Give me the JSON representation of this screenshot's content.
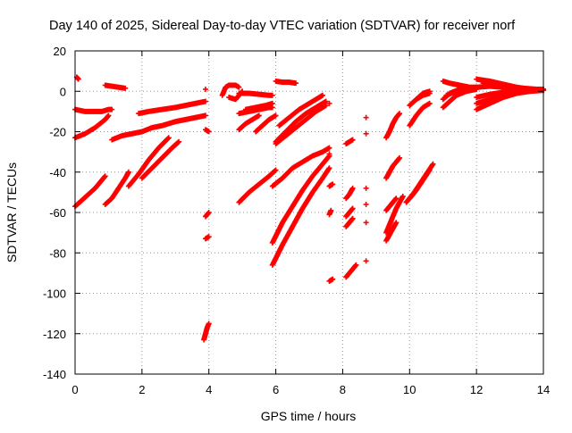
{
  "chart_data": {
    "type": "scatter",
    "title": "Day 140 of 2025, Sidereal Day-to-day VTEC variation (SDTVAR) for receiver norf",
    "xlabel": "GPS time / hours",
    "ylabel": "SDTVAR / TECUs",
    "xlim": [
      0,
      14
    ],
    "ylim": [
      -140,
      20
    ],
    "x_ticks": [
      "0",
      "2",
      "4",
      "6",
      "8",
      "10",
      "12",
      "14"
    ],
    "y_ticks": [
      "-140",
      "-120",
      "-100",
      "-80",
      "-60",
      "-40",
      "-20",
      "0",
      "20"
    ],
    "grid": true,
    "marker": "plus",
    "color": "#ff0000",
    "series": [
      {
        "points": [
          [
            0.0,
            -57
          ],
          [
            0.2,
            -54
          ],
          [
            0.4,
            -51
          ],
          [
            0.6,
            -48
          ],
          [
            0.8,
            -44
          ],
          [
            0.9,
            -42
          ]
        ]
      },
      {
        "points": [
          [
            0.0,
            -23
          ],
          [
            0.3,
            -21
          ],
          [
            0.6,
            -18
          ],
          [
            0.9,
            -14
          ],
          [
            1.0,
            -12
          ]
        ]
      },
      {
        "points": [
          [
            0.0,
            -9
          ],
          [
            0.3,
            -10
          ],
          [
            0.6,
            -10
          ],
          [
            0.8,
            -10
          ],
          [
            1.0,
            -9
          ],
          [
            1.1,
            -9
          ]
        ]
      },
      {
        "points": [
          [
            0.05,
            7
          ],
          [
            0.1,
            6
          ]
        ]
      },
      {
        "points": [
          [
            0.9,
            3
          ],
          [
            1.1,
            2.5
          ],
          [
            1.3,
            2
          ],
          [
            1.5,
            1.5
          ]
        ]
      },
      {
        "points": [
          [
            0.9,
            -56
          ],
          [
            1.1,
            -53
          ],
          [
            1.3,
            -48
          ],
          [
            1.5,
            -43
          ],
          [
            1.6,
            -40
          ]
        ]
      },
      {
        "points": [
          [
            1.1,
            -24
          ],
          [
            1.4,
            -22
          ],
          [
            1.7,
            -21
          ],
          [
            2.0,
            -20
          ],
          [
            2.3,
            -18
          ],
          [
            2.6,
            -17
          ],
          [
            3.0,
            -15
          ],
          [
            3.3,
            -14
          ],
          [
            3.6,
            -13
          ],
          [
            3.9,
            -12
          ]
        ]
      },
      {
        "points": [
          [
            1.6,
            -47
          ],
          [
            1.9,
            -41
          ],
          [
            2.2,
            -34
          ],
          [
            2.5,
            -28
          ],
          [
            2.8,
            -23
          ]
        ]
      },
      {
        "points": [
          [
            1.9,
            -11
          ],
          [
            2.2,
            -10
          ],
          [
            2.6,
            -9
          ],
          [
            3.0,
            -8
          ],
          [
            3.3,
            -7
          ],
          [
            3.6,
            -6
          ],
          [
            3.9,
            -5
          ]
        ]
      },
      {
        "points": [
          [
            2.0,
            -43
          ],
          [
            2.3,
            -38
          ],
          [
            2.6,
            -33
          ],
          [
            2.9,
            -28
          ],
          [
            3.1,
            -25
          ]
        ]
      },
      {
        "points": [
          [
            3.9,
            -19
          ],
          [
            4.0,
            -20
          ]
        ]
      },
      {
        "points": [
          [
            3.9,
            1
          ]
        ]
      },
      {
        "points": [
          [
            3.9,
            -62
          ],
          [
            4.0,
            -60
          ]
        ]
      },
      {
        "points": [
          [
            3.9,
            -73
          ],
          [
            4.0,
            -72
          ]
        ]
      },
      {
        "points": [
          [
            3.85,
            -123
          ],
          [
            3.9,
            -120
          ],
          [
            3.95,
            -117
          ],
          [
            4.0,
            -115
          ]
        ]
      },
      {
        "points": [
          [
            4.4,
            -2
          ],
          [
            4.5,
            2
          ],
          [
            4.6,
            3
          ],
          [
            4.8,
            3
          ],
          [
            4.9,
            2
          ]
        ]
      },
      {
        "points": [
          [
            4.6,
            -3
          ],
          [
            4.8,
            -4
          ],
          [
            5.0,
            0
          ]
        ]
      },
      {
        "points": [
          [
            4.9,
            -1
          ],
          [
            5.2,
            -1
          ],
          [
            5.5,
            -1.5
          ],
          [
            5.8,
            -2
          ],
          [
            5.9,
            -2
          ]
        ]
      },
      {
        "points": [
          [
            4.9,
            -19
          ],
          [
            5.1,
            -16
          ],
          [
            5.3,
            -14
          ],
          [
            5.5,
            -12
          ]
        ]
      },
      {
        "points": [
          [
            4.9,
            -55
          ],
          [
            5.2,
            -50
          ],
          [
            5.5,
            -46
          ],
          [
            5.8,
            -42
          ],
          [
            6.0,
            -39
          ]
        ]
      },
      {
        "points": [
          [
            4.9,
            -11
          ],
          [
            5.2,
            -10
          ],
          [
            5.5,
            -9
          ],
          [
            5.8,
            -8
          ],
          [
            5.9,
            -8
          ]
        ]
      },
      {
        "points": [
          [
            5.1,
            -9
          ],
          [
            5.4,
            -8
          ],
          [
            5.7,
            -7
          ],
          [
            5.9,
            -6
          ]
        ]
      },
      {
        "points": [
          [
            5.4,
            -20
          ],
          [
            5.6,
            -17
          ],
          [
            5.8,
            -14
          ],
          [
            6.0,
            -12
          ]
        ]
      },
      {
        "points": [
          [
            6.0,
            5
          ],
          [
            6.2,
            4.5
          ],
          [
            6.4,
            4.5
          ],
          [
            6.6,
            4
          ]
        ]
      },
      {
        "points": [
          [
            5.9,
            -86
          ],
          [
            6.2,
            -76
          ],
          [
            6.5,
            -67
          ],
          [
            6.8,
            -58
          ],
          [
            7.1,
            -50
          ],
          [
            7.4,
            -43
          ],
          [
            7.6,
            -38
          ]
        ]
      },
      {
        "points": [
          [
            5.9,
            -75
          ],
          [
            6.2,
            -65
          ],
          [
            6.5,
            -57
          ],
          [
            6.8,
            -49
          ],
          [
            7.1,
            -42
          ],
          [
            7.4,
            -36
          ],
          [
            7.6,
            -32
          ]
        ]
      },
      {
        "points": [
          [
            5.9,
            -47
          ],
          [
            6.2,
            -43
          ],
          [
            6.5,
            -38
          ],
          [
            6.8,
            -35
          ],
          [
            7.1,
            -32
          ],
          [
            7.4,
            -30
          ],
          [
            7.6,
            -28
          ]
        ]
      },
      {
        "points": [
          [
            6.0,
            -26
          ],
          [
            6.3,
            -22
          ],
          [
            6.6,
            -18
          ],
          [
            6.9,
            -14
          ],
          [
            7.2,
            -10
          ],
          [
            7.5,
            -7
          ]
        ]
      },
      {
        "points": [
          [
            6.0,
            -25
          ],
          [
            6.3,
            -20
          ],
          [
            6.6,
            -15
          ],
          [
            6.9,
            -11
          ],
          [
            7.2,
            -8
          ],
          [
            7.5,
            -5
          ]
        ]
      },
      {
        "points": [
          [
            6.1,
            -17
          ],
          [
            6.4,
            -13
          ],
          [
            6.7,
            -9
          ],
          [
            7.0,
            -6
          ],
          [
            7.3,
            -3
          ],
          [
            7.4,
            -2
          ]
        ]
      },
      {
        "points": [
          [
            7.6,
            -6
          ]
        ]
      },
      {
        "points": [
          [
            7.6,
            -31
          ]
        ]
      },
      {
        "points": [
          [
            7.6,
            -47
          ],
          [
            7.7,
            -46
          ]
        ]
      },
      {
        "points": [
          [
            7.6,
            -61
          ],
          [
            7.65,
            -59
          ]
        ]
      },
      {
        "points": [
          [
            7.6,
            -94
          ],
          [
            7.7,
            -93
          ]
        ]
      },
      {
        "points": [
          [
            8.1,
            -26
          ],
          [
            8.2,
            -25
          ],
          [
            8.3,
            -24
          ]
        ]
      },
      {
        "points": [
          [
            8.1,
            -53
          ],
          [
            8.2,
            -51
          ],
          [
            8.3,
            -48
          ]
        ]
      },
      {
        "points": [
          [
            8.1,
            -62
          ],
          [
            8.2,
            -60
          ],
          [
            8.3,
            -58
          ]
        ]
      },
      {
        "points": [
          [
            8.1,
            -67
          ],
          [
            8.2,
            -65
          ],
          [
            8.3,
            -63
          ]
        ]
      },
      {
        "points": [
          [
            8.1,
            -92
          ],
          [
            8.2,
            -90
          ],
          [
            8.3,
            -88
          ],
          [
            8.4,
            -86
          ]
        ]
      },
      {
        "points": [
          [
            8.7,
            -13
          ]
        ]
      },
      {
        "points": [
          [
            8.7,
            -21
          ]
        ]
      },
      {
        "points": [
          [
            8.7,
            -48
          ]
        ]
      },
      {
        "points": [
          [
            8.7,
            -56
          ]
        ]
      },
      {
        "points": [
          [
            8.7,
            -65
          ]
        ]
      },
      {
        "points": [
          [
            8.7,
            -84
          ]
        ]
      },
      {
        "points": [
          [
            9.3,
            -23
          ],
          [
            9.4,
            -20
          ],
          [
            9.5,
            -16
          ],
          [
            9.6,
            -13
          ],
          [
            9.7,
            -11
          ]
        ]
      },
      {
        "points": [
          [
            9.3,
            -43
          ],
          [
            9.4,
            -40
          ],
          [
            9.5,
            -37
          ],
          [
            9.6,
            -35
          ],
          [
            9.7,
            -33
          ]
        ]
      },
      {
        "points": [
          [
            9.3,
            -59
          ],
          [
            9.4,
            -57
          ],
          [
            9.5,
            -55
          ],
          [
            9.6,
            -53
          ]
        ]
      },
      {
        "points": [
          [
            9.3,
            -70
          ],
          [
            9.4,
            -66
          ],
          [
            9.5,
            -62
          ],
          [
            9.6,
            -58
          ],
          [
            9.7,
            -55
          ],
          [
            9.8,
            -52
          ]
        ]
      },
      {
        "points": [
          [
            9.3,
            -74
          ],
          [
            9.4,
            -71
          ],
          [
            9.5,
            -68
          ],
          [
            9.6,
            -65
          ]
        ]
      },
      {
        "points": [
          [
            9.9,
            -55
          ],
          [
            10.1,
            -51
          ],
          [
            10.3,
            -46
          ],
          [
            10.5,
            -41
          ],
          [
            10.7,
            -36
          ]
        ]
      },
      {
        "points": [
          [
            10.0,
            -53
          ],
          [
            10.2,
            -49
          ],
          [
            10.4,
            -44
          ],
          [
            10.6,
            -39
          ]
        ]
      },
      {
        "points": [
          [
            10.0,
            -17
          ],
          [
            10.2,
            -12
          ],
          [
            10.4,
            -8
          ],
          [
            10.6,
            -6
          ]
        ]
      },
      {
        "points": [
          [
            10.0,
            -7
          ],
          [
            10.2,
            -4
          ],
          [
            10.4,
            -2
          ],
          [
            10.6,
            -1
          ]
        ]
      },
      {
        "points": [
          [
            10.2,
            -4
          ],
          [
            10.4,
            -1
          ],
          [
            10.6,
            0
          ]
        ]
      },
      {
        "points": [
          [
            11.0,
            -8
          ],
          [
            11.2,
            -5
          ],
          [
            11.4,
            -2
          ],
          [
            11.7,
            0
          ],
          [
            12.0,
            1
          ]
        ]
      },
      {
        "points": [
          [
            11.0,
            -4
          ],
          [
            11.2,
            -1
          ],
          [
            11.5,
            1
          ],
          [
            11.8,
            1.5
          ],
          [
            12.0,
            2
          ]
        ]
      },
      {
        "points": [
          [
            11.0,
            5
          ],
          [
            11.2,
            4
          ],
          [
            11.5,
            3
          ],
          [
            11.8,
            2
          ],
          [
            12.0,
            2
          ]
        ]
      },
      {
        "points": [
          [
            11.1,
            -2
          ],
          [
            11.4,
            0
          ],
          [
            11.7,
            1
          ],
          [
            12.0,
            1.5
          ]
        ]
      },
      {
        "points": [
          [
            12.0,
            6
          ],
          [
            12.4,
            5
          ],
          [
            12.8,
            3.5
          ],
          [
            13.2,
            2
          ],
          [
            13.6,
            1
          ],
          [
            14.0,
            0.5
          ]
        ]
      },
      {
        "points": [
          [
            12.0,
            -9
          ],
          [
            12.4,
            -6
          ],
          [
            12.8,
            -3
          ],
          [
            13.2,
            -1
          ],
          [
            13.6,
            0
          ],
          [
            14.0,
            0.5
          ]
        ]
      },
      {
        "points": [
          [
            12.0,
            -3
          ],
          [
            12.4,
            -1.5
          ],
          [
            12.8,
            -0.5
          ],
          [
            13.2,
            0.5
          ],
          [
            13.6,
            1
          ],
          [
            14.0,
            1
          ]
        ]
      },
      {
        "points": [
          [
            12.0,
            2
          ],
          [
            12.4,
            2.5
          ],
          [
            12.8,
            2
          ],
          [
            13.2,
            1.5
          ],
          [
            13.6,
            1
          ],
          [
            14.0,
            0.5
          ]
        ]
      },
      {
        "points": [
          [
            12.0,
            -6
          ],
          [
            12.4,
            -4
          ],
          [
            12.8,
            -2
          ],
          [
            13.2,
            -0.5
          ],
          [
            13.6,
            0.5
          ],
          [
            14.0,
            1
          ]
        ]
      },
      {
        "points": [
          [
            12.2,
            4
          ],
          [
            12.6,
            3
          ],
          [
            13.0,
            2
          ],
          [
            13.4,
            1.5
          ],
          [
            13.8,
            1
          ]
        ]
      }
    ]
  }
}
